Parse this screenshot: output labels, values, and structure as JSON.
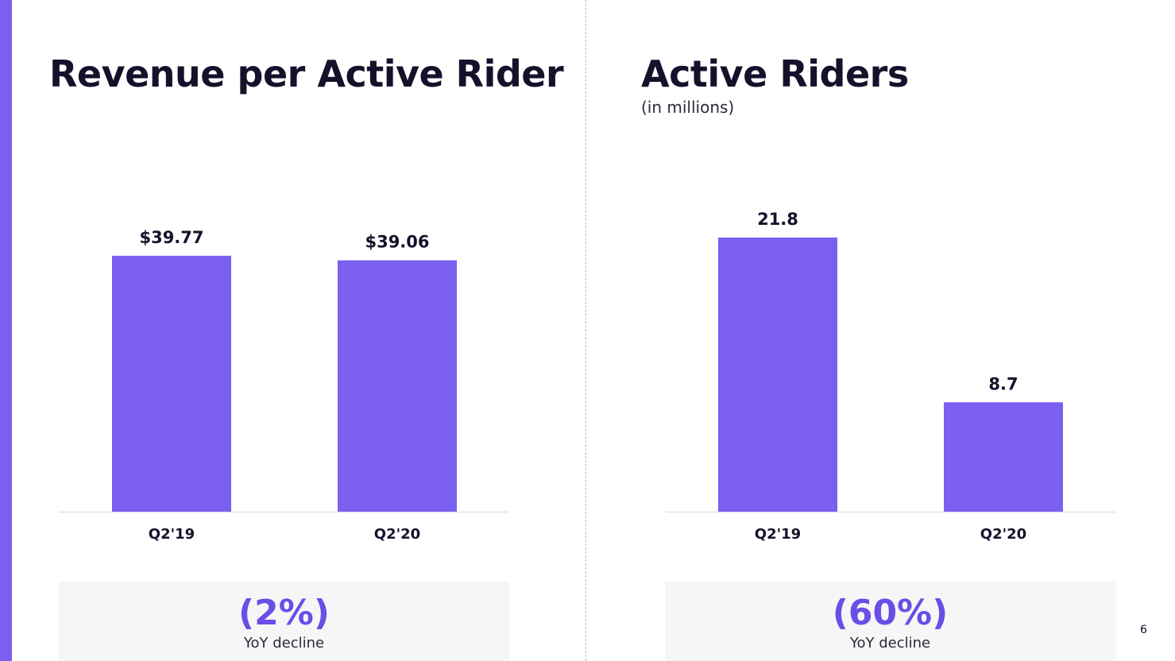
{
  "colors": {
    "accent": "#7a5ff0",
    "yoy_text": "#6a4ee6",
    "text": "#14122b",
    "box_bg": "#f6f6f6"
  },
  "page_number": "6",
  "left_panel": {
    "title": "Revenue per Active Rider",
    "yoy": {
      "value": "(2%)",
      "label": "YoY decline"
    }
  },
  "right_panel": {
    "title": "Active Riders",
    "subtitle": "(in millions)",
    "yoy": {
      "value": "(60%)",
      "label": "YoY decline"
    }
  },
  "chart_data": [
    {
      "type": "bar",
      "title": "Revenue per Active Rider",
      "categories": [
        "Q2'19",
        "Q2'20"
      ],
      "values": [
        39.77,
        39.06
      ],
      "data_labels": [
        "$39.77",
        "$39.06"
      ],
      "ylim": [
        0,
        40.5
      ],
      "grid": false,
      "legend": "none"
    },
    {
      "type": "bar",
      "title": "Active Riders",
      "subtitle": "(in millions)",
      "categories": [
        "Q2'19",
        "Q2'20"
      ],
      "values": [
        21.8,
        8.7
      ],
      "data_labels": [
        "21.8",
        "8.7"
      ],
      "ylim": [
        0,
        21.8
      ],
      "grid": false,
      "legend": "none"
    }
  ]
}
